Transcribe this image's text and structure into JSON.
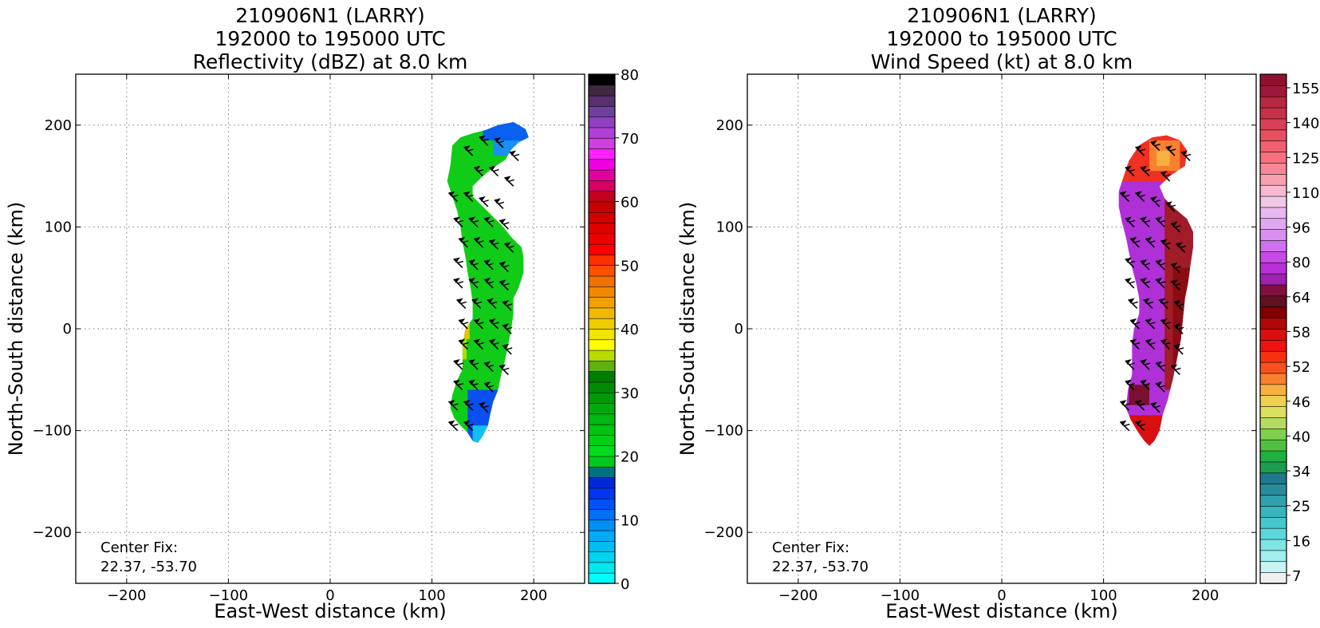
{
  "chart_data": [
    {
      "type": "heatmap",
      "title_lines": [
        "210906N1 (LARRY)",
        "192000 to 195000 UTC",
        "Reflectivity (dBZ) at 8.0 km"
      ],
      "xlabel": "East-West distance (km)",
      "ylabel": "North-South distance (km)",
      "xlim": [
        -250,
        250
      ],
      "ylim": [
        -250,
        250
      ],
      "x_ticks": [
        -200,
        -100,
        0,
        100,
        200
      ],
      "y_ticks": [
        -200,
        -100,
        0,
        100,
        200
      ],
      "grid": true,
      "annotation_lines": [
        "Center Fix:",
        "22.37, -53.70"
      ],
      "colorbar": {
        "min": 0,
        "max": 80,
        "tick_values": [
          0,
          10,
          20,
          30,
          40,
          50,
          60,
          70,
          80
        ],
        "tick_labels": [
          "0",
          "10",
          "20",
          "30",
          "40",
          "50",
          "60",
          "70",
          "80"
        ],
        "colors": [
          "#00ffff",
          "#00e8f0",
          "#00d4f0",
          "#00bff0",
          "#00aaf5",
          "#0090f5",
          "#0070f5",
          "#0050f5",
          "#0036f0",
          "#0028d8",
          "#007080",
          "#00c820",
          "#00dc1e",
          "#00d014",
          "#00c412",
          "#00b810",
          "#00aa0c",
          "#009a08",
          "#008a04",
          "#007c00",
          "#60b010",
          "#b8dc00",
          "#ffff00",
          "#f0e400",
          "#f0cc00",
          "#f0b800",
          "#f0a000",
          "#f08800",
          "#f07000",
          "#ff5000",
          "#ff3000",
          "#ff0000",
          "#f00000",
          "#e00000",
          "#d40000",
          "#c80000",
          "#c00020",
          "#d80060",
          "#e000a0",
          "#f000e0",
          "#ff20ff",
          "#d040e0",
          "#b040d8",
          "#9040c0",
          "#7040a0",
          "#583070",
          "#402840",
          "#000000"
        ]
      },
      "field_description": "Reflectivity shading: predominantly green (about 20-25 dBZ) with blue edges (about 5-15 dBZ) at the north and south ends, small yellow/orange patch near x=130, y=0; wind barbs in black",
      "field_polygon_km": [
        [
          120,
          180
        ],
        [
          128,
          188
        ],
        [
          140,
          192
        ],
        [
          152,
          195
        ],
        [
          165,
          200
        ],
        [
          180,
          203
        ],
        [
          192,
          196
        ],
        [
          195,
          188
        ],
        [
          185,
          183
        ],
        [
          178,
          176
        ],
        [
          172,
          166
        ],
        [
          160,
          158
        ],
        [
          150,
          150
        ],
        [
          140,
          140
        ],
        [
          140,
          130
        ],
        [
          150,
          120
        ],
        [
          160,
          110
        ],
        [
          170,
          100
        ],
        [
          178,
          90
        ],
        [
          188,
          80
        ],
        [
          190,
          70
        ],
        [
          190,
          55
        ],
        [
          185,
          40
        ],
        [
          180,
          30
        ],
        [
          180,
          15
        ],
        [
          178,
          0
        ],
        [
          175,
          -15
        ],
        [
          172,
          -30
        ],
        [
          168,
          -45
        ],
        [
          165,
          -60
        ],
        [
          160,
          -72
        ],
        [
          157,
          -85
        ],
        [
          155,
          -95
        ],
        [
          150,
          -105
        ],
        [
          145,
          -112
        ],
        [
          140,
          -110
        ],
        [
          135,
          -102
        ],
        [
          128,
          -95
        ],
        [
          122,
          -88
        ],
        [
          118,
          -78
        ],
        [
          120,
          -65
        ],
        [
          125,
          -50
        ],
        [
          130,
          -40
        ],
        [
          130,
          -28
        ],
        [
          130,
          -15
        ],
        [
          133,
          0
        ],
        [
          140,
          10
        ],
        [
          140,
          25
        ],
        [
          138,
          40
        ],
        [
          135,
          55
        ],
        [
          133,
          70
        ],
        [
          130,
          85
        ],
        [
          128,
          100
        ],
        [
          125,
          115
        ],
        [
          120,
          130
        ],
        [
          115,
          145
        ],
        [
          118,
          160
        ]
      ],
      "wind_barbs_km": [
        [
          140,
          170
        ],
        [
          155,
          180
        ],
        [
          170,
          178
        ],
        [
          185,
          165
        ],
        [
          150,
          150
        ],
        [
          165,
          150
        ],
        [
          180,
          140
        ],
        [
          125,
          125
        ],
        [
          140,
          125
        ],
        [
          155,
          120
        ],
        [
          170,
          118
        ],
        [
          130,
          100
        ],
        [
          145,
          100
        ],
        [
          160,
          100
        ],
        [
          175,
          98
        ],
        [
          135,
          80
        ],
        [
          150,
          80
        ],
        [
          165,
          78
        ],
        [
          180,
          75
        ],
        [
          130,
          60
        ],
        [
          145,
          58
        ],
        [
          160,
          58
        ],
        [
          175,
          56
        ],
        [
          130,
          40
        ],
        [
          145,
          40
        ],
        [
          160,
          40
        ],
        [
          175,
          38
        ],
        [
          133,
          20
        ],
        [
          148,
          20
        ],
        [
          163,
          20
        ],
        [
          178,
          18
        ],
        [
          135,
          0
        ],
        [
          150,
          0
        ],
        [
          165,
          0
        ],
        [
          178,
          -5
        ],
        [
          135,
          -20
        ],
        [
          150,
          -20
        ],
        [
          165,
          -20
        ],
        [
          178,
          -25
        ],
        [
          130,
          -40
        ],
        [
          145,
          -40
        ],
        [
          160,
          -42
        ],
        [
          175,
          -45
        ],
        [
          130,
          -60
        ],
        [
          145,
          -60
        ],
        [
          160,
          -62
        ],
        [
          125,
          -80
        ],
        [
          140,
          -80
        ],
        [
          155,
          -82
        ],
        [
          125,
          -100
        ],
        [
          140,
          -100
        ]
      ]
    },
    {
      "type": "heatmap",
      "title_lines": [
        "210906N1 (LARRY)",
        "192000 to 195000 UTC",
        "Wind Speed (kt) at 8.0 km"
      ],
      "xlabel": "East-West distance (km)",
      "ylabel": "North-South distance (km)",
      "xlim": [
        -250,
        250
      ],
      "ylim": [
        -250,
        250
      ],
      "x_ticks": [
        -200,
        -100,
        0,
        100,
        200
      ],
      "y_ticks": [
        -200,
        -100,
        0,
        100,
        200
      ],
      "grid": true,
      "annotation_lines": [
        "Center Fix:",
        "22.37, -53.70"
      ],
      "colorbar": {
        "min": 0,
        "max": 160,
        "tick_values": [
          7,
          16,
          25,
          34,
          40,
          46,
          52,
          58,
          64,
          80,
          96,
          110,
          125,
          140,
          155
        ],
        "tick_labels": [
          "7",
          "16",
          "25",
          "34",
          "40",
          "46",
          "52",
          "58",
          "64",
          "80",
          "96",
          "110",
          "125",
          "140",
          "155"
        ],
        "colors": [
          "#f0f0f0",
          "#c8f4f4",
          "#a0eeee",
          "#7ee4e4",
          "#5cd8dc",
          "#44c8cc",
          "#38b4bc",
          "#30a0ac",
          "#288c9c",
          "#20788c",
          "#1c9c50",
          "#20b040",
          "#50c040",
          "#80d050",
          "#b4dc60",
          "#dce060",
          "#f0d050",
          "#f8b040",
          "#f88030",
          "#f85020",
          "#f83010",
          "#f01010",
          "#d81010",
          "#b00808",
          "#800000",
          "#601020",
          "#801040",
          "#a020b0",
          "#b830d8",
          "#c848e8",
          "#d070f0",
          "#d890f0",
          "#e0a8f0",
          "#e8b8f0",
          "#f0c8e8",
          "#f8b8d0",
          "#f8a0b0",
          "#f88898",
          "#f87080",
          "#f06070",
          "#e85060",
          "#d84058",
          "#c83048",
          "#b82840",
          "#a01838",
          "#901030"
        ]
      },
      "field_description": "Wind speed shading: mostly purple/violet (about 64-90 kt) with dark red bands (about 55-64 kt) along the east side and south tip, orange/red area at the north end (about 46-58 kt); black wind barbs and contour lines",
      "field_polygon_km": [
        [
          120,
          150
        ],
        [
          125,
          165
        ],
        [
          135,
          180
        ],
        [
          148,
          188
        ],
        [
          162,
          190
        ],
        [
          175,
          185
        ],
        [
          182,
          175
        ],
        [
          180,
          160
        ],
        [
          165,
          150
        ],
        [
          155,
          140
        ],
        [
          160,
          128
        ],
        [
          170,
          118
        ],
        [
          182,
          108
        ],
        [
          188,
          95
        ],
        [
          188,
          80
        ],
        [
          185,
          60
        ],
        [
          183,
          45
        ],
        [
          180,
          30
        ],
        [
          178,
          10
        ],
        [
          176,
          -10
        ],
        [
          172,
          -30
        ],
        [
          168,
          -50
        ],
        [
          163,
          -70
        ],
        [
          158,
          -85
        ],
        [
          155,
          -100
        ],
        [
          150,
          -110
        ],
        [
          145,
          -115
        ],
        [
          140,
          -110
        ],
        [
          133,
          -100
        ],
        [
          127,
          -90
        ],
        [
          122,
          -78
        ],
        [
          124,
          -60
        ],
        [
          128,
          -45
        ],
        [
          128,
          -30
        ],
        [
          128,
          -15
        ],
        [
          130,
          0
        ],
        [
          135,
          15
        ],
        [
          135,
          30
        ],
        [
          132,
          45
        ],
        [
          128,
          60
        ],
        [
          125,
          75
        ],
        [
          122,
          90
        ],
        [
          118,
          105
        ],
        [
          115,
          120
        ],
        [
          115,
          135
        ]
      ],
      "wind_barbs_km": [
        [
          140,
          170
        ],
        [
          155,
          175
        ],
        [
          170,
          170
        ],
        [
          185,
          165
        ],
        [
          130,
          150
        ],
        [
          145,
          150
        ],
        [
          165,
          145
        ],
        [
          125,
          125
        ],
        [
          140,
          125
        ],
        [
          155,
          120
        ],
        [
          170,
          115
        ],
        [
          130,
          100
        ],
        [
          145,
          100
        ],
        [
          160,
          100
        ],
        [
          175,
          95
        ],
        [
          135,
          80
        ],
        [
          150,
          80
        ],
        [
          165,
          78
        ],
        [
          180,
          75
        ],
        [
          130,
          60
        ],
        [
          145,
          58
        ],
        [
          160,
          58
        ],
        [
          175,
          55
        ],
        [
          130,
          40
        ],
        [
          145,
          40
        ],
        [
          160,
          40
        ],
        [
          175,
          38
        ],
        [
          133,
          20
        ],
        [
          148,
          20
        ],
        [
          163,
          20
        ],
        [
          178,
          18
        ],
        [
          135,
          0
        ],
        [
          150,
          0
        ],
        [
          165,
          0
        ],
        [
          178,
          -5
        ],
        [
          135,
          -20
        ],
        [
          150,
          -20
        ],
        [
          165,
          -20
        ],
        [
          178,
          -25
        ],
        [
          130,
          -40
        ],
        [
          145,
          -40
        ],
        [
          160,
          -42
        ],
        [
          175,
          -45
        ],
        [
          130,
          -60
        ],
        [
          145,
          -60
        ],
        [
          160,
          -62
        ],
        [
          125,
          -80
        ],
        [
          140,
          -80
        ],
        [
          155,
          -82
        ],
        [
          125,
          -100
        ],
        [
          140,
          -100
        ]
      ]
    }
  ]
}
